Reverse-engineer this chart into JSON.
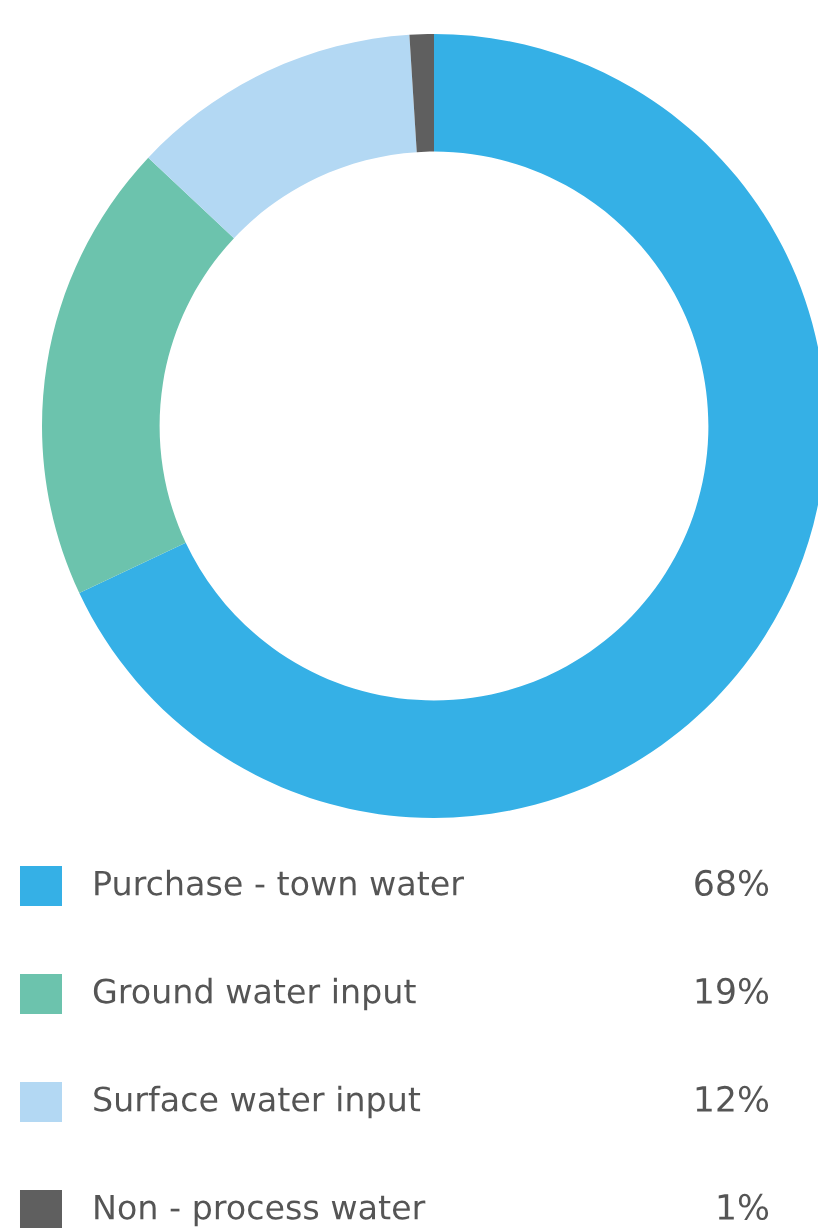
{
  "chart_data": {
    "type": "donut",
    "categories": [
      "Purchase - town water",
      "Ground water input",
      "Surface water input",
      "Non - process water"
    ],
    "values": [
      68,
      19,
      12,
      1
    ],
    "colors": [
      "#35b0e6",
      "#6cc3ad",
      "#b3d8f3",
      "#5f5f5f"
    ],
    "value_labels": [
      "68%",
      "19%",
      "12%",
      "1%"
    ],
    "legend": "bottom"
  }
}
